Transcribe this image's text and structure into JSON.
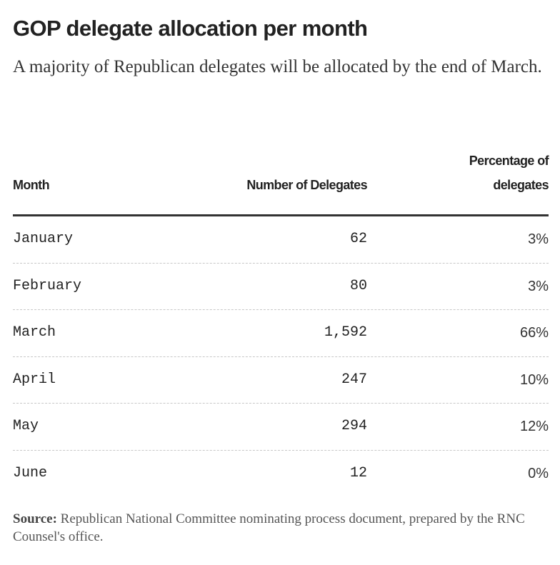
{
  "title": "GOP delegate allocation per month",
  "subtitle": "A majority of Republican delegates will be allocated by the end of March.",
  "table": {
    "headers": {
      "month": "Month",
      "number": "Number of Delegates",
      "percentage": "Percentage of delegates"
    }
  },
  "chart_data": {
    "type": "table",
    "title": "GOP delegate allocation per month",
    "columns": [
      "Month",
      "Number of Delegates",
      "Percentage of delegates"
    ],
    "rows": [
      {
        "month": "January",
        "delegates": "62",
        "percentage": "3%"
      },
      {
        "month": "February",
        "delegates": "80",
        "percentage": "3%"
      },
      {
        "month": "March",
        "delegates": "1,592",
        "percentage": "66%"
      },
      {
        "month": "April",
        "delegates": "247",
        "percentage": "10%"
      },
      {
        "month": "May",
        "delegates": "294",
        "percentage": "12%"
      },
      {
        "month": "June",
        "delegates": "12",
        "percentage": "0%"
      }
    ]
  },
  "source": {
    "label": "Source:",
    "text": " Republican National Committee nominating process document, prepared by the RNC Counsel's office."
  }
}
